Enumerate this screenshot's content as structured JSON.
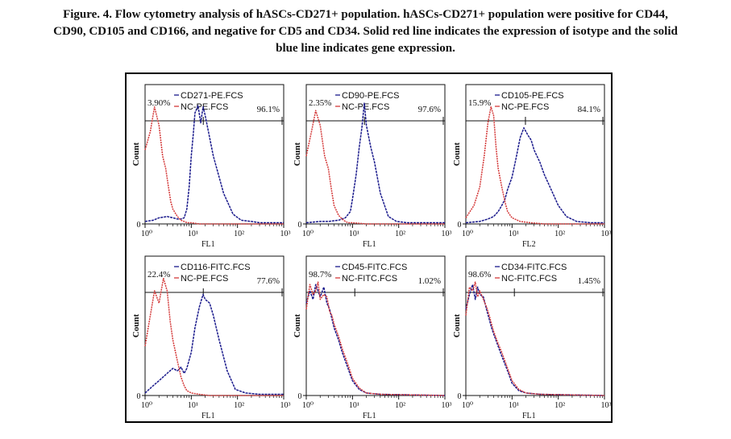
{
  "caption": {
    "line1": "Figure. 4. Flow cytometry analysis of hASCs-CD271+ population. hASCs-CD271+ population were positive for CD44,",
    "line2": "CD90, CD105 and CD166, and negative for CD5 and CD34. Solid red line indicates the expression of isotype and the solid",
    "line3": "blue line indicates gene expression."
  },
  "colors": {
    "isotype": "#d43a3a",
    "gene": "#1a1a8c",
    "axis": "#111111"
  },
  "chart_data": [
    {
      "type": "line",
      "xscale": "log",
      "xlim": [
        1,
        1000
      ],
      "xticks": [
        "10⁰",
        "10¹",
        "10²",
        "10³"
      ],
      "xlabel": "FL1",
      "ylabel": "Count",
      "ytick": "0",
      "gate_left_pct": "3.90%",
      "gate_right_pct": "96.1%",
      "series": [
        {
          "name": "CD271-PE.FCS",
          "color": "#1a1a8c",
          "x": [
            1,
            1.5,
            2,
            3,
            4,
            5,
            6,
            7,
            8,
            9,
            10,
            11,
            12,
            14,
            16,
            18,
            20,
            30,
            50,
            80,
            120,
            200,
            300,
            500,
            1000
          ],
          "y": [
            0.02,
            0.03,
            0.05,
            0.06,
            0.05,
            0.04,
            0.04,
            0.05,
            0.12,
            0.3,
            0.55,
            0.72,
            0.9,
            0.96,
            0.82,
            0.95,
            0.88,
            0.55,
            0.25,
            0.08,
            0.03,
            0.02,
            0.01,
            0.01,
            0.01
          ]
        },
        {
          "name": "NC-PE.FCS",
          "color": "#d43a3a",
          "x": [
            1,
            1.3,
            1.6,
            2,
            2.4,
            2.8,
            3.2,
            3.6,
            4,
            5,
            6,
            7,
            8,
            10,
            15,
            25,
            40,
            100,
            1000
          ],
          "y": [
            0.6,
            0.75,
            0.95,
            0.8,
            0.55,
            0.45,
            0.3,
            0.18,
            0.12,
            0.06,
            0.03,
            0.02,
            0.01,
            0.01,
            0,
            0,
            0,
            0,
            0
          ]
        }
      ]
    },
    {
      "type": "line",
      "xscale": "log",
      "xlim": [
        1,
        1000
      ],
      "xticks": [
        "10⁰",
        "10¹",
        "10²",
        "10³"
      ],
      "xlabel": "FL1",
      "ylabel": "Count",
      "ytick": "0",
      "gate_left_pct": "2.35%",
      "gate_right_pct": "97.6%",
      "series": [
        {
          "name": "CD90-PE.FCS",
          "color": "#1a1a8c",
          "x": [
            1,
            2,
            3,
            5,
            7,
            9,
            10,
            12,
            14,
            16,
            18,
            20,
            25,
            30,
            40,
            60,
            90,
            150,
            300,
            1000
          ],
          "y": [
            0.01,
            0.02,
            0.02,
            0.03,
            0.05,
            0.1,
            0.2,
            0.4,
            0.62,
            0.78,
            0.98,
            0.8,
            0.62,
            0.5,
            0.25,
            0.06,
            0.02,
            0.01,
            0.01,
            0.01
          ]
        },
        {
          "name": "NC-PE.FCS",
          "color": "#d43a3a",
          "x": [
            1,
            1.3,
            1.6,
            2,
            2.5,
            3,
            3.5,
            4,
            5,
            6,
            7,
            8,
            10,
            20,
            1000
          ],
          "y": [
            0.55,
            0.75,
            0.92,
            0.8,
            0.55,
            0.45,
            0.28,
            0.15,
            0.07,
            0.04,
            0.02,
            0.01,
            0.01,
            0,
            0
          ]
        }
      ]
    },
    {
      "type": "line",
      "xscale": "log",
      "xlim": [
        1,
        1000
      ],
      "xticks": [
        "10⁰",
        "10¹",
        "10²",
        "10³"
      ],
      "xlabel": "FL2",
      "ylabel": "Count",
      "ytick": "0",
      "gate_left_pct": "15.9%",
      "gate_right_pct": "84.1%",
      "series": [
        {
          "name": "CD105-PE.FCS",
          "color": "#1a1a8c",
          "x": [
            1,
            2,
            3,
            4,
            5,
            6,
            7,
            8,
            10,
            12,
            15,
            18,
            22,
            26,
            30,
            40,
            50,
            70,
            100,
            150,
            250,
            500,
            1000
          ],
          "y": [
            0.01,
            0.02,
            0.04,
            0.06,
            0.1,
            0.15,
            0.2,
            0.28,
            0.38,
            0.52,
            0.7,
            0.78,
            0.72,
            0.68,
            0.6,
            0.5,
            0.4,
            0.28,
            0.15,
            0.06,
            0.02,
            0.01,
            0.01
          ]
        },
        {
          "name": "NC-PE.FCS",
          "color": "#d43a3a",
          "x": [
            1,
            1.5,
            2,
            2.5,
            3,
            3.5,
            4,
            4.5,
            5,
            6,
            7,
            8,
            10,
            15,
            25,
            50,
            1000
          ],
          "y": [
            0.05,
            0.15,
            0.3,
            0.55,
            0.82,
            0.95,
            0.88,
            0.62,
            0.45,
            0.3,
            0.18,
            0.1,
            0.05,
            0.02,
            0.01,
            0,
            0
          ]
        }
      ]
    },
    {
      "type": "line",
      "xscale": "log",
      "xlim": [
        1,
        1000
      ],
      "xticks": [
        "10⁰",
        "10¹",
        "10²",
        "10³"
      ],
      "xlabel": "FL1",
      "ylabel": "Count",
      "ytick": "0",
      "gate_left_pct": "22.4%",
      "gate_right_pct": "77.6%",
      "series": [
        {
          "name": "CD116-FITC.FCS",
          "color": "#1a1a8c",
          "x": [
            1,
            1.5,
            2,
            3,
            4,
            5,
            6,
            7,
            8,
            10,
            12,
            15,
            18,
            20,
            25,
            30,
            40,
            60,
            90,
            150,
            300,
            1000
          ],
          "y": [
            0.02,
            0.08,
            0.12,
            0.18,
            0.22,
            0.2,
            0.23,
            0.18,
            0.22,
            0.35,
            0.55,
            0.72,
            0.82,
            0.78,
            0.75,
            0.65,
            0.45,
            0.2,
            0.05,
            0.02,
            0.01,
            0.01
          ]
        },
        {
          "name": "NC-PE.FCS",
          "color": "#d43a3a",
          "x": [
            1,
            1.3,
            1.6,
            2,
            2.5,
            3,
            3.5,
            4,
            5,
            6,
            7,
            8,
            10,
            15,
            25,
            1000
          ],
          "y": [
            0.4,
            0.65,
            0.85,
            0.75,
            0.95,
            0.85,
            0.6,
            0.45,
            0.28,
            0.15,
            0.08,
            0.04,
            0.02,
            0.01,
            0,
            0
          ]
        }
      ]
    },
    {
      "type": "line",
      "xscale": "log",
      "xlim": [
        1,
        1000
      ],
      "xticks": [
        "10⁰",
        "10¹",
        "10²",
        "10³"
      ],
      "xlabel": "FL1",
      "ylabel": "Count",
      "ytick": "0",
      "gate_left_pct": "98.7%",
      "gate_right_pct": "1.02%",
      "series": [
        {
          "name": "CD45-FITC.FCS",
          "color": "#1a1a8c",
          "x": [
            1,
            1.2,
            1.4,
            1.6,
            1.8,
            2,
            2.4,
            2.8,
            3.2,
            3.6,
            4,
            5,
            6,
            8,
            10,
            14,
            20,
            40,
            1000
          ],
          "y": [
            0.75,
            0.85,
            0.78,
            0.9,
            0.85,
            0.8,
            0.88,
            0.75,
            0.7,
            0.62,
            0.55,
            0.45,
            0.35,
            0.22,
            0.12,
            0.05,
            0.02,
            0.01,
            0
          ]
        },
        {
          "name": "NC-FITC.FCS",
          "color": "#d43a3a",
          "x": [
            1,
            1.2,
            1.4,
            1.6,
            1.8,
            2,
            2.4,
            2.8,
            3.2,
            3.6,
            4,
            5,
            6,
            8,
            10,
            14,
            20,
            40,
            1000
          ],
          "y": [
            0.7,
            0.9,
            0.82,
            0.85,
            0.92,
            0.78,
            0.82,
            0.8,
            0.68,
            0.65,
            0.58,
            0.48,
            0.38,
            0.25,
            0.14,
            0.06,
            0.02,
            0.01,
            0
          ]
        }
      ]
    },
    {
      "type": "line",
      "xscale": "log",
      "xlim": [
        1,
        1000
      ],
      "xticks": [
        "10⁰",
        "10¹",
        "10²",
        "10³"
      ],
      "xlabel": "FL1",
      "ylabel": "Count",
      "ytick": "0",
      "gate_left_pct": "98.6%",
      "gate_right_pct": "1.45%",
      "series": [
        {
          "name": "CD34-FITC.FCS",
          "color": "#1a1a8c",
          "x": [
            1,
            1.2,
            1.4,
            1.6,
            1.8,
            2,
            2.4,
            2.8,
            3.2,
            3.6,
            4,
            5,
            6,
            8,
            10,
            14,
            20,
            40,
            1000
          ],
          "y": [
            0.7,
            0.82,
            0.9,
            0.78,
            0.88,
            0.82,
            0.8,
            0.7,
            0.62,
            0.55,
            0.5,
            0.4,
            0.32,
            0.2,
            0.1,
            0.04,
            0.02,
            0.01,
            0
          ]
        },
        {
          "name": "NC-FITC.FCS",
          "color": "#d43a3a",
          "x": [
            1,
            1.2,
            1.4,
            1.6,
            1.8,
            2,
            2.4,
            2.8,
            3.2,
            3.6,
            4,
            5,
            6,
            8,
            10,
            14,
            20,
            40,
            1000
          ],
          "y": [
            0.65,
            0.88,
            0.85,
            0.92,
            0.8,
            0.85,
            0.78,
            0.72,
            0.65,
            0.58,
            0.52,
            0.42,
            0.35,
            0.22,
            0.12,
            0.05,
            0.02,
            0.01,
            0
          ]
        }
      ]
    }
  ]
}
